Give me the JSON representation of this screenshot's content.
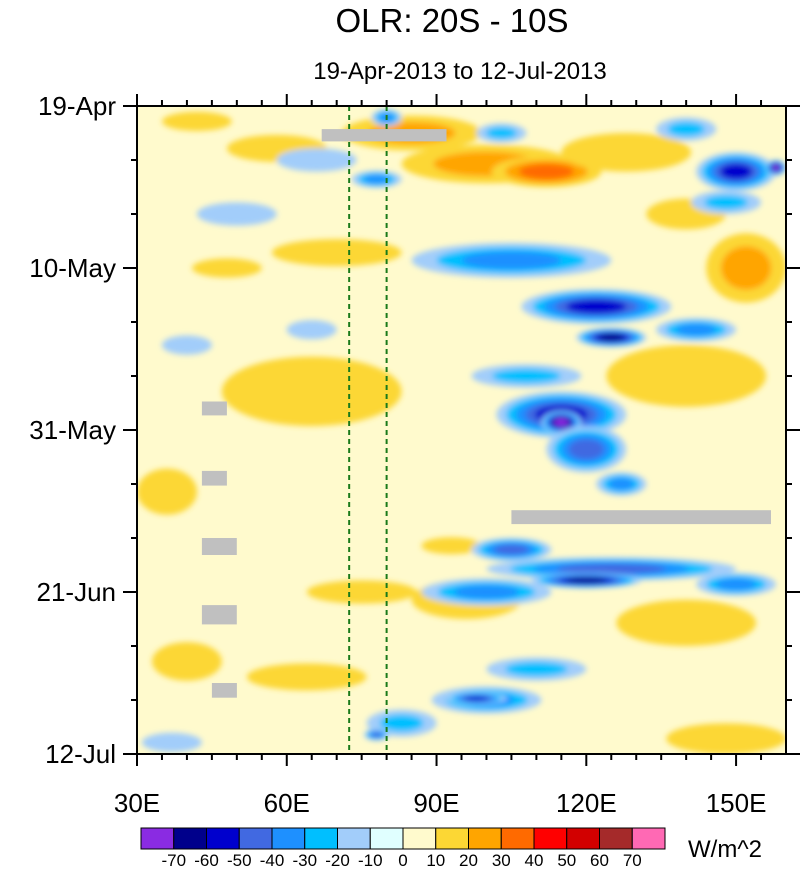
{
  "chart_data": {
    "type": "heatmap",
    "title": "OLR: 20S - 10S",
    "subtitle": "19-Apr-2013 to 12-Jul-2013",
    "x_axis": {
      "range": [
        30,
        160
      ],
      "ticks": [
        30,
        60,
        90,
        120,
        150
      ],
      "tick_labels": [
        "30E",
        "60E",
        "90E",
        "120E",
        "150E"
      ]
    },
    "y_axis": {
      "range_days": [
        0,
        84
      ],
      "ticks": [
        0,
        21,
        42,
        63,
        84
      ],
      "tick_labels": [
        "19-Apr",
        "10-May",
        "31-May",
        "21-Jun",
        "12-Jul"
      ]
    },
    "colorbar": {
      "units": "W/m^2",
      "levels": [
        -70,
        -60,
        -50,
        -40,
        -30,
        -20,
        -10,
        0,
        10,
        20,
        30,
        40,
        50,
        60,
        70
      ],
      "colors": [
        "#8a2be2",
        "#00008b",
        "#0000cd",
        "#4169e1",
        "#1e90ff",
        "#00bfff",
        "#a2cdfa",
        "#e0ffff",
        "#fffacd",
        "#fcd734",
        "#ffa500",
        "#ff6a00",
        "#ff0000",
        "#d20000",
        "#a52a2a",
        "#ff69b4"
      ]
    },
    "reference_lines": [
      {
        "lon": 72.5,
        "style": "dashed",
        "color": "#1a7a1a"
      },
      {
        "lon": 80,
        "style": "dashed",
        "color": "#1a7a1a"
      }
    ],
    "missing_data": [
      {
        "lon": [
          67,
          92
        ],
        "day": [
          3,
          4.6
        ]
      },
      {
        "lon": [
          105,
          157
        ],
        "day": [
          52.4,
          54.2
        ]
      },
      {
        "lon": [
          43,
          48
        ],
        "day": [
          38.3,
          40.1
        ]
      },
      {
        "lon": [
          43,
          48
        ],
        "day": [
          47.3,
          49.2
        ]
      },
      {
        "lon": [
          43,
          50
        ],
        "day": [
          56,
          58.2
        ]
      },
      {
        "lon": [
          43,
          50
        ],
        "day": [
          64.7,
          67.2
        ]
      },
      {
        "lon": [
          45,
          50
        ],
        "day": [
          74.8,
          76.7
        ]
      }
    ],
    "features": [
      {
        "lon": 85,
        "day": 3.5,
        "w": 28,
        "h": 4.5,
        "v": 20
      },
      {
        "lon": 100,
        "day": 7.5,
        "w": 34,
        "h": 5,
        "v": 22
      },
      {
        "lon": 112,
        "day": 8.5,
        "w": 22,
        "h": 4,
        "v": 32
      },
      {
        "lon": 128,
        "day": 6,
        "w": 26,
        "h": 5,
        "v": 16
      },
      {
        "lon": 58,
        "day": 5.5,
        "w": 20,
        "h": 3.5,
        "v": 15
      },
      {
        "lon": 42,
        "day": 2,
        "w": 14,
        "h": 2.5,
        "v": 12
      },
      {
        "lon": 70,
        "day": 19,
        "w": 26,
        "h": 3.5,
        "v": 12
      },
      {
        "lon": 48,
        "day": 21,
        "w": 14,
        "h": 2.5,
        "v": 10
      },
      {
        "lon": 152,
        "day": 21,
        "w": 16,
        "h": 9,
        "v": 24
      },
      {
        "lon": 140,
        "day": 14,
        "w": 16,
        "h": 4,
        "v": 12
      },
      {
        "lon": 65,
        "day": 37,
        "w": 36,
        "h": 9,
        "v": 13
      },
      {
        "lon": 140,
        "day": 35,
        "w": 32,
        "h": 8,
        "v": 13
      },
      {
        "lon": 36,
        "day": 50,
        "w": 12,
        "h": 6,
        "v": 10
      },
      {
        "lon": 93,
        "day": 57,
        "w": 12,
        "h": 2.2,
        "v": 15
      },
      {
        "lon": 75,
        "day": 63,
        "w": 22,
        "h": 3,
        "v": 12
      },
      {
        "lon": 96,
        "day": 64,
        "w": 22,
        "h": 5,
        "v": 12
      },
      {
        "lon": 40,
        "day": 72,
        "w": 14,
        "h": 5,
        "v": 10
      },
      {
        "lon": 64,
        "day": 74,
        "w": 24,
        "h": 3.5,
        "v": 11
      },
      {
        "lon": 140,
        "day": 67,
        "w": 28,
        "h": 6,
        "v": 12
      },
      {
        "lon": 148,
        "day": 82,
        "w": 24,
        "h": 4,
        "v": 14
      },
      {
        "lon": 80,
        "day": 1.5,
        "w": 6,
        "h": 2.2,
        "v": -35
      },
      {
        "lon": 78,
        "day": 9.5,
        "w": 10,
        "h": 2.2,
        "v": -35
      },
      {
        "lon": 66,
        "day": 7,
        "w": 16,
        "h": 3,
        "v": -14
      },
      {
        "lon": 50,
        "day": 14,
        "w": 16,
        "h": 3,
        "v": -10
      },
      {
        "lon": 40,
        "day": 31,
        "w": 10,
        "h": 2.5,
        "v": -12
      },
      {
        "lon": 65,
        "day": 29,
        "w": 10,
        "h": 2.5,
        "v": -10
      },
      {
        "lon": 103,
        "day": 3.5,
        "w": 10,
        "h": 2.5,
        "v": -28
      },
      {
        "lon": 140,
        "day": 3,
        "w": 12,
        "h": 3,
        "v": -20
      },
      {
        "lon": 150,
        "day": 8.5,
        "w": 16,
        "h": 5,
        "v": -55
      },
      {
        "lon": 158,
        "day": 8,
        "w": 4,
        "h": 2,
        "v": -75
      },
      {
        "lon": 148,
        "day": 12.5,
        "w": 14,
        "h": 3,
        "v": -20
      },
      {
        "lon": 105,
        "day": 20,
        "w": 40,
        "h": 4.5,
        "v": -38
      },
      {
        "lon": 122,
        "day": 26,
        "w": 30,
        "h": 4.5,
        "v": -50
      },
      {
        "lon": 125,
        "day": 30,
        "w": 14,
        "h": 2.5,
        "v": -65
      },
      {
        "lon": 142,
        "day": 29,
        "w": 16,
        "h": 3,
        "v": -30
      },
      {
        "lon": 115,
        "day": 40,
        "w": 26,
        "h": 6,
        "v": -55
      },
      {
        "lon": 115,
        "day": 41,
        "w": 8,
        "h": 3,
        "v": -75
      },
      {
        "lon": 120,
        "day": 44.5,
        "w": 16,
        "h": 6,
        "v": -45
      },
      {
        "lon": 108,
        "day": 35,
        "w": 22,
        "h": 3,
        "v": -25
      },
      {
        "lon": 127,
        "day": 49,
        "w": 10,
        "h": 3,
        "v": -35
      },
      {
        "lon": 125,
        "day": 60,
        "w": 50,
        "h": 3,
        "v": -48
      },
      {
        "lon": 105,
        "day": 57.5,
        "w": 16,
        "h": 3,
        "v": -45
      },
      {
        "lon": 120,
        "day": 61.5,
        "w": 22,
        "h": 2,
        "v": -62
      },
      {
        "lon": 100,
        "day": 63,
        "w": 26,
        "h": 3.5,
        "v": -35
      },
      {
        "lon": 150,
        "day": 62,
        "w": 16,
        "h": 3,
        "v": -30
      },
      {
        "lon": 100,
        "day": 77,
        "w": 22,
        "h": 3.5,
        "v": -38
      },
      {
        "lon": 98,
        "day": 76.8,
        "w": 12,
        "h": 1.6,
        "v": -52
      },
      {
        "lon": 83,
        "day": 80,
        "w": 14,
        "h": 3.5,
        "v": -25
      },
      {
        "lon": 78,
        "day": 81.5,
        "w": 5,
        "h": 1.5,
        "v": -48
      },
      {
        "lon": 110,
        "day": 73,
        "w": 20,
        "h": 3,
        "v": -20
      },
      {
        "lon": 37,
        "day": 82.5,
        "w": 12,
        "h": 2.5,
        "v": -14
      }
    ]
  }
}
